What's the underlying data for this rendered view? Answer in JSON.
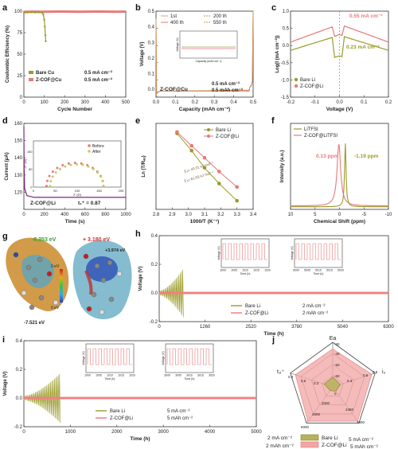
{
  "colors": {
    "bare": "#9a9a2a",
    "zcof": "#e87979",
    "zfill": "#f2a5a5",
    "bfill": "#c9c86a",
    "pinkline": "#f08080"
  },
  "chart_data": [
    {
      "id": "a",
      "type": "line",
      "panel_label": "a",
      "xlabel": "Cycle Number",
      "ylabel": "Coulombic Efficiency (%)",
      "xlim": [
        0,
        550
      ],
      "ylim": [
        0,
        100
      ],
      "xticks": [
        "0",
        "100",
        "200",
        "300",
        "400",
        "500"
      ],
      "yticks": [
        "0",
        "25",
        "50",
        "75",
        "100"
      ],
      "series": [
        {
          "name": "Bare Cu",
          "note": "0.5 mA cm⁻²",
          "x": [
            1,
            20,
            40,
            60,
            80,
            100,
            105,
            110,
            113,
            116,
            118
          ],
          "y": [
            98,
            98.5,
            98.7,
            98.5,
            98.6,
            98,
            96,
            90,
            82,
            72,
            65
          ]
        },
        {
          "name": "Z-COF@Cu",
          "note": "0.5 mA cm⁻²",
          "x": [
            1,
            50,
            100,
            150,
            200,
            250,
            300,
            350,
            400,
            450,
            500,
            550
          ],
          "y": [
            99.2,
            99.4,
            99.3,
            99.4,
            99.5,
            99.4,
            99.3,
            99.4,
            99.5,
            99.4,
            99.3,
            99.4
          ]
        }
      ]
    },
    {
      "id": "b",
      "type": "line",
      "panel_label": "b",
      "xlabel": "Capacity (mAh cm⁻²)",
      "ylabel": "Voltage (V)",
      "xlim": [
        0,
        0.5
      ],
      "ylim": [
        -0.05,
        0.5
      ],
      "xticks": [
        "0.0",
        "0.1",
        "0.2",
        "0.3",
        "0.4",
        "0.5"
      ],
      "yticks": [
        "0.0",
        "0.1",
        "0.2",
        "0.3",
        "0.4",
        "0.5"
      ],
      "legend": [
        "1st",
        "200 th",
        "400 th",
        "550 th"
      ],
      "notes": [
        "0.5 mA cm⁻²",
        "0.5 mAh cm⁻²"
      ],
      "material": "Z-COF@Cu",
      "inset": {
        "xlabel": "Capacity (mAh cm⁻²)",
        "ylabel": "Voltage (V)"
      }
    },
    {
      "id": "c",
      "type": "line",
      "panel_label": "c",
      "xlabel": "Voltage (V)",
      "ylabel": "Log(I (mA cm⁻²))",
      "xlim": [
        -0.2,
        0.2
      ],
      "ylim": [
        -1.5,
        1.0
      ],
      "xticks": [
        "-0.2",
        "-0.1",
        "0.0",
        "0.1",
        "0.2"
      ],
      "yticks": [
        "-1.5",
        "-1.0",
        "-0.5",
        "0.0",
        "0.5",
        "1.0"
      ],
      "series": [
        {
          "name": "Bare Li",
          "i0": "0.23 mA cm⁻²"
        },
        {
          "name": "Z-COF@Li",
          "i0": "0.55 mA cm⁻²"
        }
      ]
    },
    {
      "id": "d",
      "type": "line",
      "panel_label": "d",
      "xlabel": "Time (s)",
      "ylabel": "Current (μA)",
      "xlim": [
        0,
        1000
      ],
      "ylim": [
        110,
        160
      ],
      "xticks": [
        "0",
        "200",
        "400",
        "600",
        "800",
        "1000"
      ],
      "yticks": [
        "120",
        "130",
        "140",
        "150",
        "160"
      ],
      "series_name": "Z-COF@Li",
      "transference": "t₁⁺ = 0.87",
      "inset": {
        "legend": [
          "Before",
          "After"
        ],
        "xlabel": "Z' (Ω)",
        "ylabel": "-Z'' (Ω)",
        "xticks": [
          "0",
          "50",
          "100",
          "150",
          "200"
        ],
        "yticks": [
          "0",
          "50",
          "100"
        ]
      }
    },
    {
      "id": "e",
      "type": "scatter",
      "panel_label": "e",
      "xlabel": "1000/T (K⁻¹)",
      "ylabel": "Ln (T/Rₐₑ)",
      "xlim": [
        2.8,
        3.4
      ],
      "ylim": [
        0.4,
        3.4
      ],
      "xticks": [
        "2.8",
        "2.9",
        "3.0",
        "3.1",
        "3.2",
        "3.3",
        "3.4"
      ],
      "series": [
        {
          "name": "Bare Li",
          "ea": "Eₐ= 61.53 kJ mol⁻¹",
          "x": [
            2.93,
            3.02,
            3.1,
            3.19,
            3.3
          ],
          "y": [
            3.05,
            2.45,
            1.85,
            1.3,
            0.7
          ]
        },
        {
          "name": "Z-COF@Li",
          "ea": "Eₐ= 45.31 kJ mol⁻¹",
          "x": [
            2.93,
            3.02,
            3.1,
            3.19,
            3.3
          ],
          "y": [
            3.1,
            2.62,
            2.2,
            1.72,
            1.18
          ]
        }
      ]
    },
    {
      "id": "f",
      "type": "line",
      "panel_label": "f",
      "xlabel": "Chemical Shift (ppm)",
      "ylabel": "Intensity (a.u.)",
      "xlim": [
        10,
        -10
      ],
      "ylim": [
        0,
        1
      ],
      "xticks": [
        "10",
        "5",
        "0",
        "-5",
        "-10"
      ],
      "series": [
        {
          "name": "LiTFSI",
          "peak": "-1.19 ppm",
          "peak_x": -1.19
        },
        {
          "name": "Z-COF@LiTFSI",
          "peak": "0.13 ppm",
          "peak_x": 0.13
        }
      ]
    },
    {
      "id": "g",
      "type": "image",
      "panel_label": "g",
      "values": [
        "-6.353 eV",
        "+ 3.180 eV",
        "+3.974 eV",
        "-7.521 eV",
        "0 eV",
        "0 eV"
      ]
    },
    {
      "id": "h",
      "type": "line",
      "panel_label": "h",
      "xlabel": "Time (h)",
      "ylabel": "Voltage (V)",
      "xlim": [
        0,
        6300
      ],
      "ylim": [
        -0.2,
        0.4
      ],
      "xticks": [
        "0",
        "1260",
        "2520",
        "3780",
        "5040",
        "6300"
      ],
      "yticks": [
        "-0.2",
        "0.0",
        "0.2",
        "0.4"
      ],
      "series": [
        {
          "name": "Bare Li",
          "note": "2 mA cm⁻²"
        },
        {
          "name": "Z-COF@Li",
          "note": "2 mAh cm⁻²"
        }
      ],
      "insets": [
        {
          "xticks": [
            "1000",
            "1005",
            "1010",
            "1015",
            "1020"
          ],
          "ylabel": "Voltage (V)",
          "xlabel": "Time (h)"
        },
        {
          "xticks": [
            "5000",
            "5005",
            "5010",
            "5015",
            "5020"
          ],
          "ylabel": "Voltage (V)",
          "xlabel": "Time (h)"
        }
      ]
    },
    {
      "id": "i",
      "type": "line",
      "panel_label": "i",
      "xlabel": "Time (h)",
      "ylabel": "Voltage (V)",
      "xlim": [
        0,
        5200
      ],
      "ylim": [
        -0.2,
        0.4
      ],
      "xticks": [
        "0",
        "1000",
        "2000",
        "3000",
        "4000",
        "5000"
      ],
      "yticks": [
        "-0.2",
        "0.0",
        "0.2",
        "0.4"
      ],
      "series": [
        {
          "name": "Bare Li",
          "note": "5 mA cm⁻²"
        },
        {
          "name": "Z-COF@Li",
          "note": "5 mAh cm⁻²"
        }
      ],
      "insets": [
        {
          "xticks": [
            "1000",
            "1005",
            "1010",
            "1015",
            "1020"
          ],
          "ylabel": "Voltage (V)",
          "xlabel": "Time (h)"
        },
        {
          "xticks": [
            "3000",
            "3005",
            "3010",
            "3015",
            "3020"
          ],
          "ylabel": "Voltage (V)",
          "xlabel": "Time (h)"
        }
      ]
    },
    {
      "id": "j",
      "type": "radar",
      "panel_label": "j",
      "axes": [
        "Ea",
        "i₀",
        "5 mA cm⁻² 5 mAh cm⁻²",
        "2 mA cm⁻² 2 mAh cm⁻²",
        "t₁ᵢ⁺"
      ],
      "tick_labels": [
        "-30",
        "-40",
        "-50",
        "-60",
        "0.6",
        "0.8",
        "0.3",
        "4900",
        "2450",
        "0",
        "4000",
        "2000",
        "6000",
        "0.6",
        "0.3",
        "0.9"
      ],
      "series": [
        {
          "name": "Bare Li",
          "values": [
            0.22,
            0.18,
            0.12,
            0.1,
            0.2
          ]
        },
        {
          "name": "Z-COF@Li",
          "values": [
            0.85,
            0.92,
            0.95,
            0.95,
            0.88
          ]
        }
      ]
    }
  ]
}
